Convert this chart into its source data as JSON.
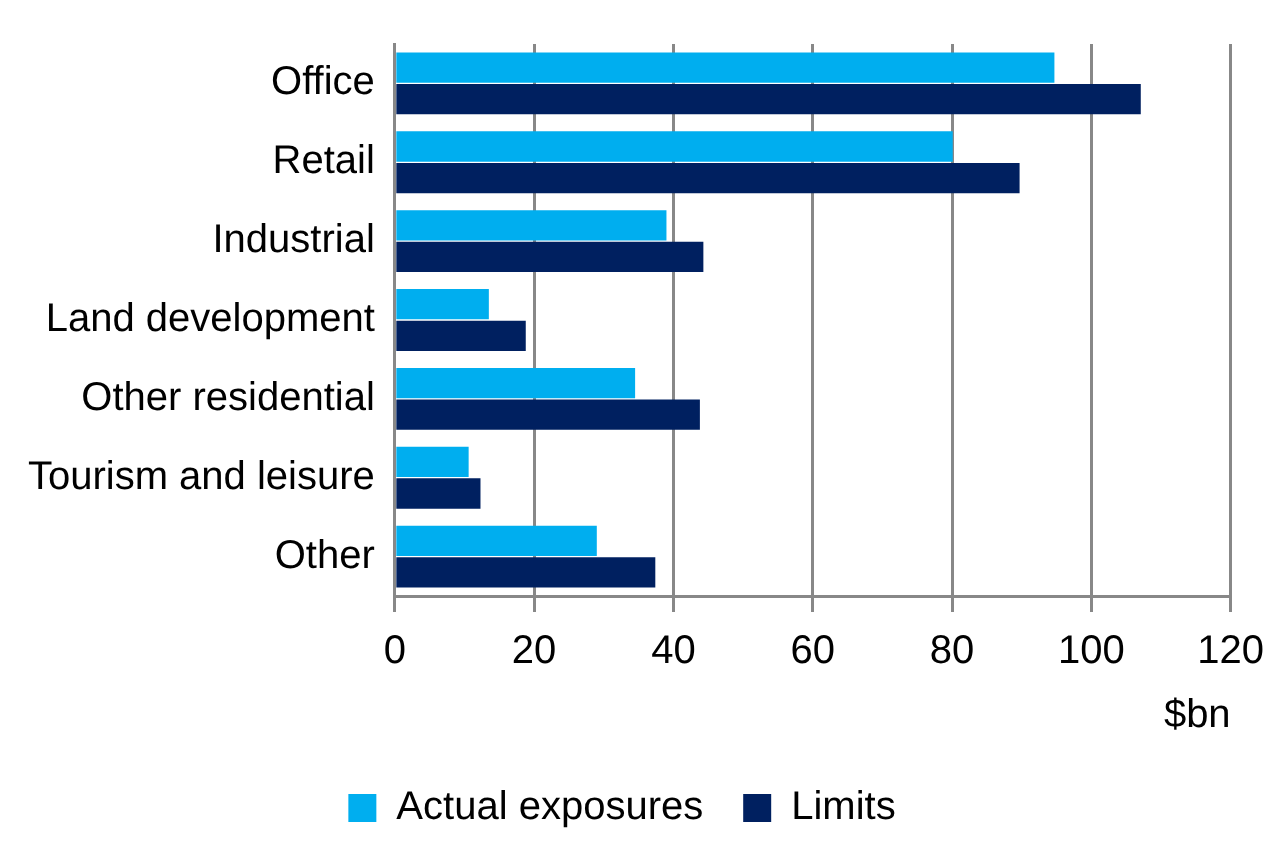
{
  "chart_data": {
    "type": "bar",
    "orientation": "horizontal",
    "categories": [
      "Office",
      "Retail",
      "Industrial",
      "Land development",
      "Other residential",
      "Tourism and leisure",
      "Other"
    ],
    "series": [
      {
        "name": "Actual exposures",
        "color": "#00aeef",
        "values": [
          94.7,
          80.1,
          39.0,
          13.5,
          34.5,
          10.6,
          29.0
        ]
      },
      {
        "name": "Limits",
        "color": "#002060",
        "values": [
          107.1,
          89.7,
          44.3,
          18.8,
          43.8,
          12.3,
          37.4
        ]
      }
    ],
    "xlabel": "$bn",
    "xlim": [
      0,
      120
    ],
    "xticks": [
      0,
      20,
      40,
      60,
      80,
      100,
      120
    ],
    "grid": "x",
    "legend": "bottom"
  }
}
